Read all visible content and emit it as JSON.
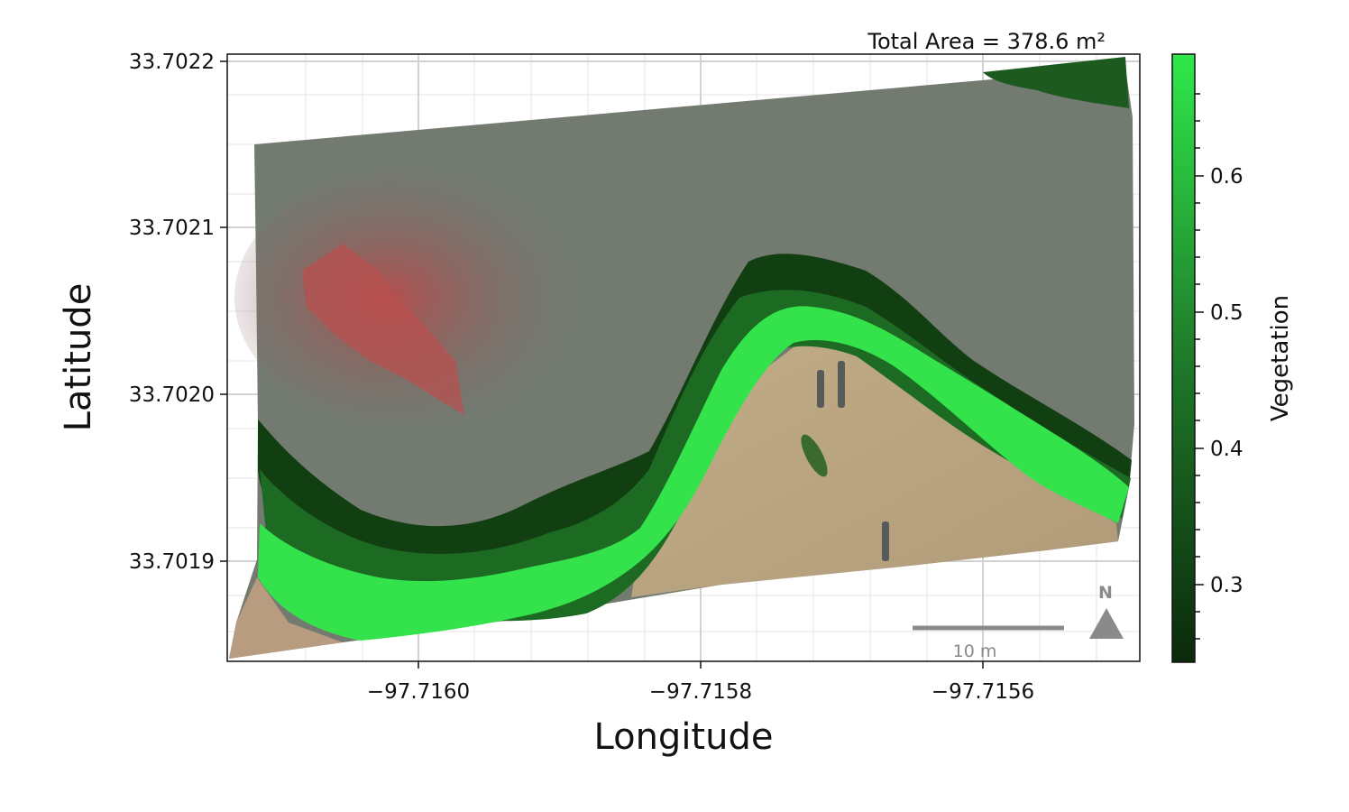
{
  "map": {
    "area_label": "Total Area = 378.6 m²",
    "xlabel": "Longitude",
    "ylabel": "Latitude",
    "x_ticks": [
      "−97.7160",
      "−97.7158",
      "−97.7156"
    ],
    "y_ticks": [
      "33.7022",
      "33.7021",
      "33.7020",
      "33.7019"
    ],
    "scale_bar_label": "10 m",
    "north_label": "N"
  },
  "colorbar": {
    "title": "Vegetation",
    "ticks": [
      "0.6",
      "0.5",
      "0.4",
      "0.3"
    ],
    "range": [
      0.24,
      0.69
    ],
    "colors": {
      "low": "#0b2a0b",
      "mid": "#1f7a2a",
      "high": "#2fe84a"
    }
  },
  "chart_data": {
    "type": "heatmap",
    "title": "Total Area = 378.6 m²",
    "xlabel": "Longitude",
    "ylabel": "Latitude",
    "xlim": [
      -97.71614,
      -97.71549
    ],
    "ylim": [
      33.70185,
      33.70222
    ],
    "x_ticks": [
      -97.716,
      -97.7158,
      -97.7156
    ],
    "y_ticks": [
      33.7022,
      33.7021,
      33.702,
      33.7019
    ],
    "colorbar": {
      "label": "Vegetation",
      "ticks": [
        0.3,
        0.4,
        0.5,
        0.6
      ],
      "range": [
        0.24,
        0.69
      ]
    }
  }
}
